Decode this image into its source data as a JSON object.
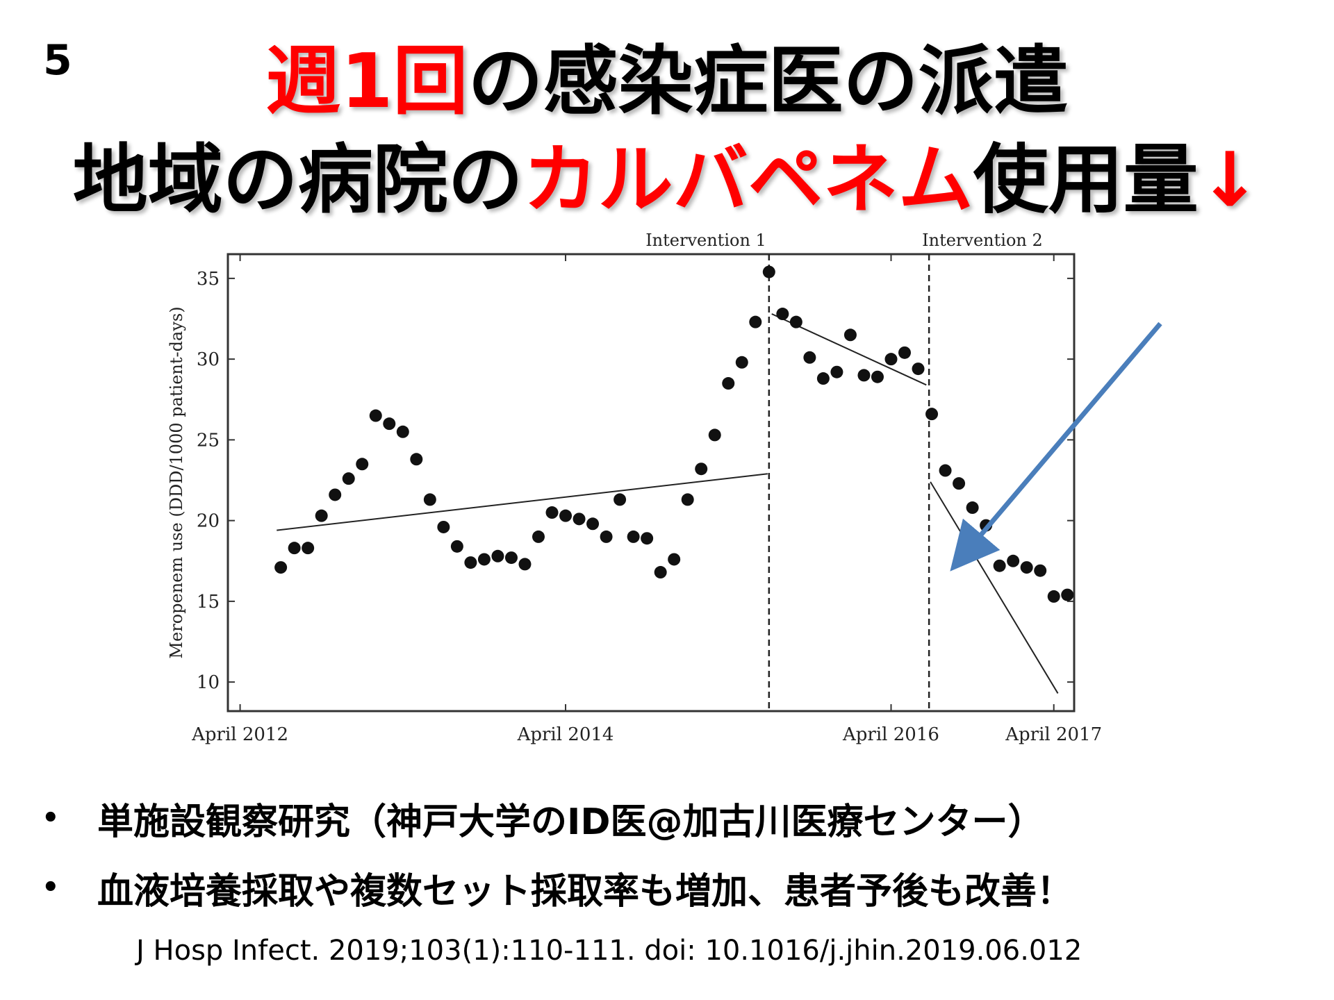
{
  "slide": {
    "number": "5",
    "title_line1": {
      "red": "週1回",
      "black": "の感染症医の派遣"
    },
    "title_line2": {
      "black1": "地域の病院の",
      "red": "カルバペネム",
      "black2": "使用量",
      "arrow": "↓"
    }
  },
  "bullets": [
    {
      "marker": "•",
      "text": "単施設観察研究（神戸大学のID医@加古川医療センター）"
    },
    {
      "marker": "•",
      "text": "血液培養採取や複数セット採取率も増加、患者予後も改善！"
    }
  ],
  "citation": "J Hosp Infect. 2019;103(1):110-111. doi: 10.1016/j.jhin.2019.06.012",
  "colors": {
    "title_red": "#ff0000",
    "annotation_arrow": "#4a7ebb",
    "points": "#111111"
  },
  "chart_data": {
    "type": "scatter",
    "ylabel": "Meropenem use (DDD/1000 patient-days)",
    "xlabel": "",
    "x_unit": "months since April 2012",
    "xlim": [
      -0.9,
      61.5
    ],
    "ylim": [
      8.2,
      36.5
    ],
    "xticks": [
      {
        "x": 0,
        "label": "April 2012"
      },
      {
        "x": 24,
        "label": "April 2014"
      },
      {
        "x": 48,
        "label": "April 2016"
      },
      {
        "x": 60,
        "label": "April 2017"
      }
    ],
    "yticks": [
      10,
      15,
      20,
      25,
      30,
      35
    ],
    "interventions": [
      {
        "x": 39,
        "label": "Intervention 1"
      },
      {
        "x": 50.8,
        "label": "Intervention 2"
      }
    ],
    "points": [
      {
        "x": 3,
        "y": 17.1
      },
      {
        "x": 4,
        "y": 18.3
      },
      {
        "x": 5,
        "y": 18.3
      },
      {
        "x": 6,
        "y": 20.3
      },
      {
        "x": 7,
        "y": 21.6
      },
      {
        "x": 8,
        "y": 22.6
      },
      {
        "x": 9,
        "y": 23.5
      },
      {
        "x": 10,
        "y": 26.5
      },
      {
        "x": 11,
        "y": 26.0
      },
      {
        "x": 12,
        "y": 25.5
      },
      {
        "x": 13,
        "y": 23.8
      },
      {
        "x": 14,
        "y": 21.3
      },
      {
        "x": 15,
        "y": 19.6
      },
      {
        "x": 16,
        "y": 18.4
      },
      {
        "x": 17,
        "y": 17.4
      },
      {
        "x": 18,
        "y": 17.6
      },
      {
        "x": 19,
        "y": 17.8
      },
      {
        "x": 20,
        "y": 17.7
      },
      {
        "x": 21,
        "y": 17.3
      },
      {
        "x": 22,
        "y": 19.0
      },
      {
        "x": 23,
        "y": 20.5
      },
      {
        "x": 24,
        "y": 20.3
      },
      {
        "x": 25,
        "y": 20.1
      },
      {
        "x": 26,
        "y": 19.8
      },
      {
        "x": 27,
        "y": 19.0
      },
      {
        "x": 28,
        "y": 21.3
      },
      {
        "x": 29,
        "y": 19.0
      },
      {
        "x": 30,
        "y": 18.9
      },
      {
        "x": 31,
        "y": 16.8
      },
      {
        "x": 32,
        "y": 17.6
      },
      {
        "x": 33,
        "y": 21.3
      },
      {
        "x": 34,
        "y": 23.2
      },
      {
        "x": 35,
        "y": 25.3
      },
      {
        "x": 36,
        "y": 28.5
      },
      {
        "x": 37,
        "y": 29.8
      },
      {
        "x": 38,
        "y": 32.3
      },
      {
        "x": 39,
        "y": 35.4
      },
      {
        "x": 40,
        "y": 32.8
      },
      {
        "x": 41,
        "y": 32.3
      },
      {
        "x": 42,
        "y": 30.1
      },
      {
        "x": 43,
        "y": 28.8
      },
      {
        "x": 44,
        "y": 29.2
      },
      {
        "x": 45,
        "y": 31.5
      },
      {
        "x": 46,
        "y": 29.0
      },
      {
        "x": 47,
        "y": 28.9
      },
      {
        "x": 48,
        "y": 30.0
      },
      {
        "x": 49,
        "y": 30.4
      },
      {
        "x": 50,
        "y": 29.4
      },
      {
        "x": 51,
        "y": 26.6
      },
      {
        "x": 52,
        "y": 23.1
      },
      {
        "x": 53,
        "y": 22.3
      },
      {
        "x": 54,
        "y": 20.8
      },
      {
        "x": 55,
        "y": 19.7
      },
      {
        "x": 56,
        "y": 17.2
      },
      {
        "x": 57,
        "y": 17.5
      },
      {
        "x": 58,
        "y": 17.1
      },
      {
        "x": 59,
        "y": 16.9
      },
      {
        "x": 60,
        "y": 15.3
      },
      {
        "x": 61,
        "y": 15.4
      }
    ],
    "trend_lines": [
      {
        "x": [
          2.7,
          38.9
        ],
        "y": [
          19.4,
          22.9
        ]
      },
      {
        "x": [
          39.2,
          50.6
        ],
        "y": [
          32.8,
          28.4
        ]
      },
      {
        "x": [
          50.9,
          60.3
        ],
        "y": [
          22.4,
          9.3
        ]
      }
    ]
  }
}
